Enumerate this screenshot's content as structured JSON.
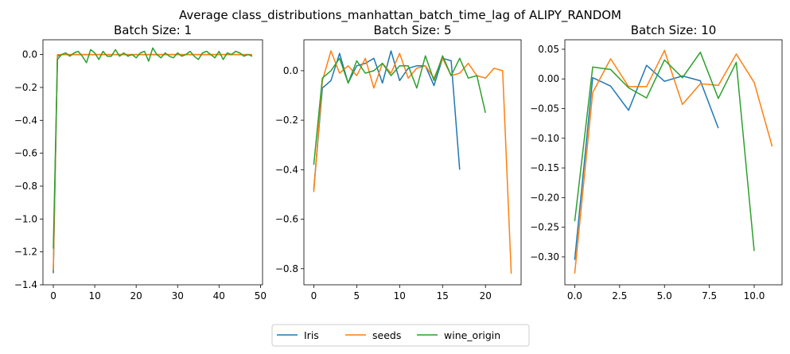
{
  "title": "Average class_distributions_manhattan_batch_time_lag of ALIPY_RANDOM",
  "legend": {
    "placement": "bottom-center"
  },
  "colors": {
    "Iris": "#1f77b4",
    "seeds": "#ff7f0e",
    "wine_origin": "#2ca02c"
  },
  "chart_data": [
    {
      "type": "line",
      "title": "Batch Size: 1",
      "xlabel": "",
      "ylabel": "",
      "xlim": [
        -2.5,
        50.5
      ],
      "ylim": [
        -1.4,
        0.09
      ],
      "xticks": [
        0,
        10,
        20,
        30,
        40,
        50
      ],
      "yticks": [
        0.0,
        -0.2,
        -0.4,
        -0.6,
        -0.8,
        -1.0,
        -1.2,
        -1.4
      ],
      "ytick_decimals": 1,
      "grid": false,
      "series": [
        {
          "name": "Iris",
          "x": [
            0,
            1,
            2,
            3,
            4,
            5,
            6,
            7,
            8,
            9,
            10,
            11,
            12,
            13,
            14,
            15,
            16,
            17,
            18,
            19,
            20,
            21,
            22,
            23,
            24,
            25,
            26,
            27,
            28,
            29,
            30,
            31,
            32,
            33,
            34,
            35,
            36,
            37,
            38,
            39,
            40,
            41,
            42,
            43,
            44,
            45,
            46,
            47,
            48
          ],
          "values": [
            -1.33,
            -0.01,
            0.0,
            0.0,
            0.0,
            0.0,
            0.0,
            0.0,
            0.0,
            0.0,
            0.0,
            0.0,
            0.0,
            0.0,
            0.0,
            0.0,
            0.0,
            0.0,
            0.0,
            0.0,
            0.0,
            0.0,
            0.0,
            0.0,
            0.0,
            0.0,
            0.0,
            0.0,
            0.0,
            0.0,
            0.0,
            0.0,
            0.0,
            0.0,
            0.0,
            0.0,
            0.0,
            0.0,
            0.0,
            0.0,
            0.0,
            0.0,
            0.0,
            0.0,
            0.0,
            0.0,
            0.0,
            0.0,
            0.0
          ]
        },
        {
          "name": "seeds",
          "x": [
            0,
            1,
            2,
            3,
            4,
            5,
            6,
            7,
            8,
            9,
            10,
            11,
            12,
            13,
            14,
            15,
            16,
            17,
            18,
            19,
            20,
            21,
            22,
            23,
            24,
            25,
            26,
            27,
            28,
            29,
            30,
            31,
            32,
            33,
            34,
            35,
            36,
            37,
            38,
            39,
            40,
            41,
            42,
            43,
            44,
            45,
            46,
            47,
            48
          ],
          "values": [
            -1.31,
            0.0,
            0.0,
            0.0,
            0.0,
            0.0,
            0.0,
            0.0,
            0.0,
            0.0,
            0.0,
            0.0,
            0.0,
            0.0,
            0.0,
            0.0,
            0.0,
            0.0,
            0.0,
            0.0,
            0.0,
            0.0,
            0.0,
            0.0,
            0.0,
            0.0,
            0.0,
            0.0,
            0.0,
            0.0,
            0.0,
            0.0,
            0.0,
            0.0,
            0.0,
            0.0,
            0.0,
            0.0,
            0.0,
            0.0,
            0.0,
            0.0,
            0.0,
            0.0,
            0.0,
            0.0,
            0.0,
            0.0,
            0.0
          ]
        },
        {
          "name": "wine_origin",
          "x": [
            0,
            1,
            2,
            3,
            4,
            5,
            6,
            7,
            8,
            9,
            10,
            11,
            12,
            13,
            14,
            15,
            16,
            17,
            18,
            19,
            20,
            21,
            22,
            23,
            24,
            25,
            26,
            27,
            28,
            29,
            30,
            31,
            32,
            33,
            34,
            35,
            36,
            37,
            38,
            39,
            40,
            41,
            42,
            43,
            44,
            45,
            46,
            47,
            48
          ],
          "values": [
            -1.18,
            -0.03,
            0.0,
            0.01,
            -0.01,
            0.01,
            0.02,
            -0.01,
            -0.05,
            0.03,
            0.01,
            -0.03,
            0.02,
            -0.01,
            -0.01,
            0.03,
            -0.01,
            0.01,
            -0.01,
            0.0,
            -0.02,
            0.01,
            0.02,
            -0.04,
            0.04,
            0.0,
            -0.02,
            0.01,
            -0.01,
            -0.02,
            0.01,
            -0.01,
            0.0,
            0.02,
            -0.01,
            -0.03,
            0.01,
            0.02,
            0.0,
            -0.02,
            0.02,
            -0.03,
            0.01,
            0.0,
            0.02,
            0.01,
            -0.01,
            0.0,
            -0.01
          ]
        }
      ]
    },
    {
      "type": "line",
      "title": "Batch Size: 5",
      "xlabel": "",
      "ylabel": "",
      "xlim": [
        -1.15,
        24.15
      ],
      "ylim": [
        -0.865,
        0.125
      ],
      "xticks": [
        0,
        5,
        10,
        15,
        20
      ],
      "yticks": [
        0.0,
        -0.2,
        -0.4,
        -0.6,
        -0.8
      ],
      "ytick_decimals": 1,
      "grid": false,
      "series": [
        {
          "name": "Iris",
          "x": [
            0,
            1,
            2,
            3,
            4,
            5,
            6,
            7,
            8,
            9,
            10,
            11,
            12,
            13,
            14,
            15,
            16,
            17
          ],
          "values": [
            -0.48,
            -0.07,
            -0.04,
            0.07,
            -0.05,
            0.02,
            0.03,
            0.05,
            -0.05,
            0.08,
            -0.04,
            0.01,
            0.02,
            0.02,
            -0.06,
            0.05,
            0.04,
            -0.4
          ]
        },
        {
          "name": "seeds",
          "x": [
            0,
            1,
            2,
            3,
            4,
            5,
            6,
            7,
            8,
            9,
            10,
            11,
            12,
            13,
            14,
            15,
            16,
            17,
            18,
            19,
            20,
            21,
            22,
            23
          ],
          "values": [
            -0.49,
            -0.04,
            0.08,
            -0.01,
            0.02,
            -0.02,
            0.05,
            -0.07,
            0.03,
            -0.01,
            0.07,
            -0.03,
            0.01,
            0.02,
            -0.03,
            0.05,
            -0.02,
            -0.01,
            0.03,
            -0.02,
            -0.03,
            0.01,
            0.0,
            -0.82
          ]
        },
        {
          "name": "wine_origin",
          "x": [
            0,
            1,
            2,
            3,
            4,
            5,
            6,
            7,
            8,
            9,
            10,
            11,
            12,
            13,
            14,
            15,
            16,
            17,
            18,
            19,
            20
          ],
          "values": [
            -0.38,
            -0.03,
            0.0,
            0.05,
            -0.05,
            0.04,
            -0.01,
            0.0,
            0.03,
            -0.02,
            0.02,
            0.02,
            -0.07,
            0.06,
            -0.04,
            0.06,
            -0.02,
            0.05,
            -0.03,
            -0.02,
            -0.17
          ]
        }
      ]
    },
    {
      "type": "line",
      "title": "Batch Size: 10",
      "xlabel": "",
      "ylabel": "",
      "xlim": [
        -0.55,
        11.55
      ],
      "ylim": [
        -0.347,
        0.066
      ],
      "xticks": [
        0.0,
        2.5,
        5.0,
        7.5,
        10.0
      ],
      "yticks": [
        0.05,
        0.0,
        -0.05,
        -0.1,
        -0.15,
        -0.2,
        -0.25,
        -0.3
      ],
      "ytick_decimals": 2,
      "xtick_decimals": 1,
      "grid": false,
      "series": [
        {
          "name": "Iris",
          "x": [
            0,
            1,
            2,
            3,
            4,
            5,
            6,
            7,
            8
          ],
          "values": [
            -0.305,
            0.002,
            -0.012,
            -0.053,
            0.023,
            -0.004,
            0.005,
            -0.003,
            -0.083
          ]
        },
        {
          "name": "seeds",
          "x": [
            0,
            1,
            2,
            3,
            4,
            5,
            6,
            7,
            8,
            9,
            10,
            11
          ],
          "values": [
            -0.328,
            -0.023,
            0.034,
            -0.013,
            -0.013,
            0.048,
            -0.043,
            -0.008,
            -0.011,
            0.042,
            -0.006,
            -0.114
          ]
        },
        {
          "name": "wine_origin",
          "x": [
            0,
            1,
            2,
            3,
            4,
            5,
            6,
            7,
            8,
            9,
            10
          ],
          "values": [
            -0.24,
            0.02,
            0.016,
            -0.015,
            -0.032,
            0.032,
            0.002,
            0.045,
            -0.033,
            0.028,
            -0.29
          ]
        }
      ]
    }
  ]
}
